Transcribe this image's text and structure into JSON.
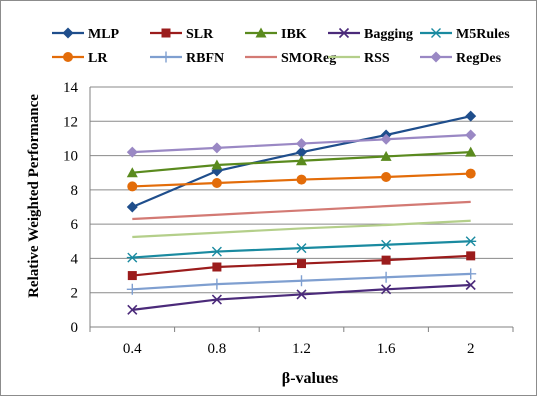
{
  "chart_data": {
    "type": "line",
    "title": "",
    "xlabel": "β-values",
    "ylabel": "Relative Weighted Performance",
    "categories": [
      "0.4",
      "0.8",
      "1.2",
      "1.6",
      "2"
    ],
    "ylim": [
      0,
      14
    ],
    "yticks": [
      0,
      2,
      4,
      6,
      8,
      10,
      12,
      14
    ],
    "grid": true,
    "legend_placement": "top",
    "series": [
      {
        "name": "MLP",
        "color": "#1f4e8c",
        "marker": "diamond",
        "values": [
          7.0,
          9.1,
          10.2,
          11.2,
          12.3
        ]
      },
      {
        "name": "SLR",
        "color": "#9b1c1c",
        "marker": "square",
        "values": [
          3.0,
          3.5,
          3.7,
          3.9,
          4.15
        ]
      },
      {
        "name": "IBK",
        "color": "#5a8a1e",
        "marker": "triangle",
        "values": [
          9.0,
          9.45,
          9.7,
          9.95,
          10.2
        ]
      },
      {
        "name": "Bagging",
        "color": "#4b2a7a",
        "marker": "x",
        "values": [
          1.0,
          1.6,
          1.9,
          2.2,
          2.45
        ]
      },
      {
        "name": "M5Rules",
        "color": "#1a8aa0",
        "marker": "asterisk",
        "values": [
          4.05,
          4.4,
          4.6,
          4.8,
          5.0
        ]
      },
      {
        "name": "LR",
        "color": "#e36c09",
        "marker": "circle",
        "values": [
          8.2,
          8.4,
          8.6,
          8.75,
          8.95
        ]
      },
      {
        "name": "RBFN",
        "color": "#7f9fd0",
        "marker": "plus",
        "values": [
          2.2,
          2.5,
          2.7,
          2.9,
          3.1
        ]
      },
      {
        "name": "SMOReg",
        "color": "#d37a74",
        "marker": "none",
        "values": [
          6.3,
          6.55,
          6.8,
          7.05,
          7.3
        ]
      },
      {
        "name": "RSS",
        "color": "#b4cf8a",
        "marker": "none",
        "values": [
          5.25,
          5.5,
          5.75,
          5.95,
          6.2
        ]
      },
      {
        "name": "RegDes",
        "color": "#9a88c4",
        "marker": "diamond",
        "values": [
          10.2,
          10.45,
          10.7,
          10.95,
          11.2
        ]
      }
    ]
  }
}
